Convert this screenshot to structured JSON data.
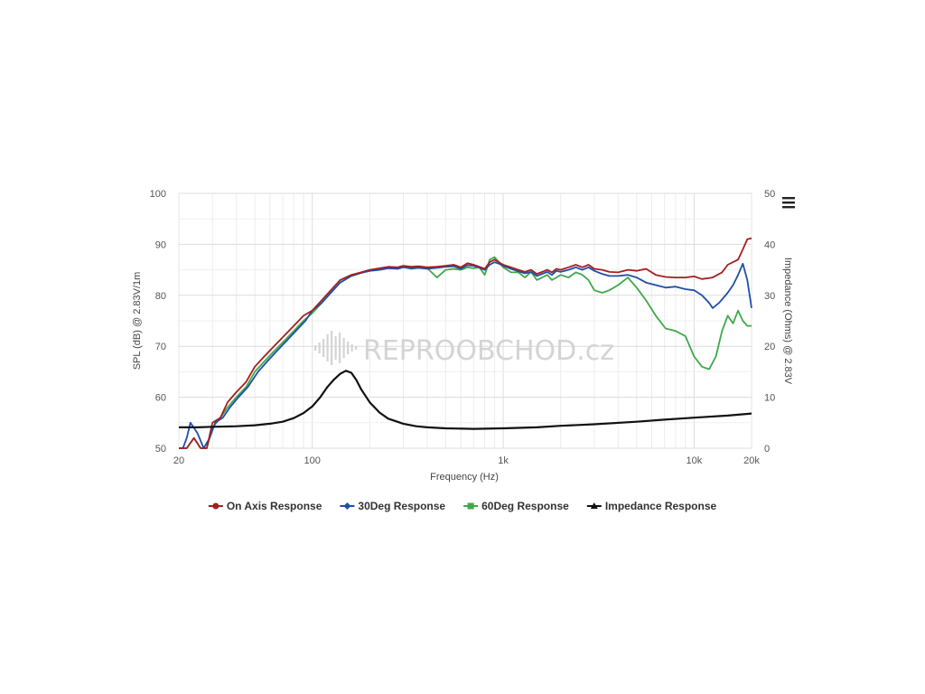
{
  "chart_data": {
    "type": "line",
    "menu_icon": "hamburger-menu-icon",
    "watermark": "REPROOBCHOD.cz",
    "xlabel": "Frequency (Hz)",
    "ylabel_left": "SPL (dB) @ 2.83V/1m",
    "ylabel_right": "Impedance (Ohms) @ 2.83V",
    "x_scale": "log",
    "xlim": [
      20,
      20000
    ],
    "ylim_left": [
      50,
      100
    ],
    "ylim_right": [
      0,
      50
    ],
    "x_ticks": [
      {
        "value": 20,
        "label": "20"
      },
      {
        "value": 100,
        "label": "100"
      },
      {
        "value": 1000,
        "label": "1k"
      },
      {
        "value": 10000,
        "label": "10k"
      },
      {
        "value": 20000,
        "label": "20k"
      }
    ],
    "y_ticks_left": [
      "50",
      "60",
      "70",
      "80",
      "90",
      "100"
    ],
    "y_ticks_right": [
      "0",
      "10",
      "20",
      "30",
      "40",
      "50"
    ],
    "grid": true,
    "legend_position": "bottom",
    "series": [
      {
        "name": "On Axis Response",
        "color": "#a31f1f",
        "axis": "left",
        "marker": "circle",
        "points": [
          [
            20,
            50
          ],
          [
            22,
            47
          ],
          [
            24,
            52
          ],
          [
            26,
            49
          ],
          [
            28,
            50
          ],
          [
            30,
            55
          ],
          [
            33,
            56
          ],
          [
            36,
            59
          ],
          [
            40,
            61
          ],
          [
            45,
            63
          ],
          [
            50,
            66
          ],
          [
            56,
            68
          ],
          [
            63,
            70
          ],
          [
            71,
            72
          ],
          [
            80,
            74
          ],
          [
            90,
            76
          ],
          [
            100,
            77
          ],
          [
            112,
            79
          ],
          [
            125,
            81
          ],
          [
            140,
            83
          ],
          [
            160,
            84
          ],
          [
            180,
            84.5
          ],
          [
            200,
            85
          ],
          [
            225,
            85.3
          ],
          [
            250,
            85.6
          ],
          [
            280,
            85.5
          ],
          [
            300,
            85.8
          ],
          [
            330,
            85.6
          ],
          [
            360,
            85.7
          ],
          [
            400,
            85.5
          ],
          [
            450,
            85.6
          ],
          [
            500,
            85.8
          ],
          [
            550,
            86
          ],
          [
            600,
            85.5
          ],
          [
            650,
            86.3
          ],
          [
            700,
            86
          ],
          [
            750,
            85.6
          ],
          [
            800,
            85.2
          ],
          [
            850,
            86.5
          ],
          [
            900,
            87
          ],
          [
            950,
            86.5
          ],
          [
            1000,
            86
          ],
          [
            1100,
            85.5
          ],
          [
            1200,
            85
          ],
          [
            1300,
            84.6
          ],
          [
            1400,
            85
          ],
          [
            1500,
            84.2
          ],
          [
            1600,
            84.6
          ],
          [
            1700,
            85
          ],
          [
            1800,
            84.5
          ],
          [
            1900,
            85.2
          ],
          [
            2000,
            85
          ],
          [
            2200,
            85.5
          ],
          [
            2400,
            86
          ],
          [
            2600,
            85.5
          ],
          [
            2800,
            86
          ],
          [
            3000,
            85.2
          ],
          [
            3300,
            85
          ],
          [
            3600,
            84.6
          ],
          [
            4000,
            84.5
          ],
          [
            4500,
            85
          ],
          [
            5000,
            84.8
          ],
          [
            5600,
            85.2
          ],
          [
            6300,
            84
          ],
          [
            7100,
            83.6
          ],
          [
            8000,
            83.5
          ],
          [
            9000,
            83.5
          ],
          [
            10000,
            83.7
          ],
          [
            11000,
            83.2
          ],
          [
            12500,
            83.5
          ],
          [
            14000,
            84.5
          ],
          [
            15000,
            86
          ],
          [
            16000,
            86.5
          ],
          [
            17000,
            87
          ],
          [
            18000,
            89
          ],
          [
            19000,
            91
          ],
          [
            20000,
            91.2
          ]
        ]
      },
      {
        "name": "30Deg Response",
        "color": "#1f4fa8",
        "axis": "left",
        "marker": "diamond",
        "points": [
          [
            20,
            50
          ],
          [
            21,
            48
          ],
          [
            22,
            52
          ],
          [
            23,
            55
          ],
          [
            25,
            53
          ],
          [
            27,
            50
          ],
          [
            29,
            52
          ],
          [
            31,
            55
          ],
          [
            34,
            56
          ],
          [
            37,
            58
          ],
          [
            41,
            60
          ],
          [
            46,
            62
          ],
          [
            52,
            65
          ],
          [
            58,
            67
          ],
          [
            65,
            69
          ],
          [
            73,
            71
          ],
          [
            82,
            73
          ],
          [
            92,
            75
          ],
          [
            100,
            77
          ],
          [
            112,
            78.5
          ],
          [
            125,
            80.5
          ],
          [
            140,
            82.5
          ],
          [
            160,
            83.8
          ],
          [
            180,
            84.4
          ],
          [
            200,
            84.8
          ],
          [
            225,
            85
          ],
          [
            250,
            85.3
          ],
          [
            280,
            85.2
          ],
          [
            300,
            85.5
          ],
          [
            330,
            85.3
          ],
          [
            360,
            85.4
          ],
          [
            400,
            85.2
          ],
          [
            450,
            85.4
          ],
          [
            500,
            85.6
          ],
          [
            550,
            85.7
          ],
          [
            600,
            85.2
          ],
          [
            650,
            85.9
          ],
          [
            700,
            85.8
          ],
          [
            750,
            85.4
          ],
          [
            800,
            85
          ],
          [
            850,
            86
          ],
          [
            900,
            86.5
          ],
          [
            950,
            86.2
          ],
          [
            1000,
            85.8
          ],
          [
            1100,
            85.2
          ],
          [
            1200,
            84.7
          ],
          [
            1300,
            84.3
          ],
          [
            1400,
            84.6
          ],
          [
            1500,
            83.8
          ],
          [
            1600,
            84.2
          ],
          [
            1700,
            84.6
          ],
          [
            1800,
            84
          ],
          [
            1900,
            84.8
          ],
          [
            2000,
            84.6
          ],
          [
            2200,
            85
          ],
          [
            2400,
            85.5
          ],
          [
            2600,
            85
          ],
          [
            2800,
            85.5
          ],
          [
            3000,
            84.8
          ],
          [
            3300,
            84.2
          ],
          [
            3600,
            83.8
          ],
          [
            4000,
            83.8
          ],
          [
            4500,
            84
          ],
          [
            5000,
            83.5
          ],
          [
            5600,
            82.5
          ],
          [
            6300,
            82
          ],
          [
            7100,
            81.5
          ],
          [
            8000,
            81.7
          ],
          [
            9000,
            81.2
          ],
          [
            10000,
            81
          ],
          [
            11000,
            80
          ],
          [
            12000,
            78.5
          ],
          [
            12500,
            77.5
          ],
          [
            13500,
            78.5
          ],
          [
            15000,
            80.5
          ],
          [
            16000,
            82
          ],
          [
            17000,
            84
          ],
          [
            18000,
            86.2
          ],
          [
            19000,
            83
          ],
          [
            20000,
            77.5
          ]
        ]
      },
      {
        "name": "60Deg Response",
        "color": "#3fa84a",
        "axis": "left",
        "marker": "square",
        "points": [
          [
            20,
            50
          ],
          [
            22,
            47
          ],
          [
            24,
            52
          ],
          [
            26,
            49
          ],
          [
            28,
            48
          ],
          [
            30,
            54
          ],
          [
            33,
            56
          ],
          [
            36,
            58
          ],
          [
            40,
            60
          ],
          [
            45,
            62
          ],
          [
            50,
            65
          ],
          [
            56,
            67
          ],
          [
            63,
            69
          ],
          [
            71,
            71
          ],
          [
            80,
            73
          ],
          [
            90,
            75
          ],
          [
            100,
            76.5
          ],
          [
            112,
            78.5
          ],
          [
            125,
            80.5
          ],
          [
            140,
            82.5
          ],
          [
            160,
            83.8
          ],
          [
            180,
            84.4
          ],
          [
            200,
            84.8
          ],
          [
            225,
            85
          ],
          [
            250,
            85.4
          ],
          [
            280,
            85.3
          ],
          [
            300,
            85.6
          ],
          [
            330,
            85.2
          ],
          [
            360,
            85.4
          ],
          [
            400,
            85.3
          ],
          [
            450,
            83.5
          ],
          [
            500,
            85
          ],
          [
            550,
            85.2
          ],
          [
            600,
            85
          ],
          [
            650,
            85.5
          ],
          [
            700,
            85.3
          ],
          [
            750,
            85.5
          ],
          [
            800,
            84
          ],
          [
            850,
            87
          ],
          [
            900,
            87.5
          ],
          [
            950,
            86.5
          ],
          [
            1000,
            85.5
          ],
          [
            1100,
            84.5
          ],
          [
            1200,
            84.5
          ],
          [
            1300,
            83.5
          ],
          [
            1400,
            84.6
          ],
          [
            1500,
            83
          ],
          [
            1600,
            83.5
          ],
          [
            1700,
            84
          ],
          [
            1800,
            83
          ],
          [
            1900,
            83.5
          ],
          [
            2000,
            84
          ],
          [
            2200,
            83.5
          ],
          [
            2400,
            84.5
          ],
          [
            2600,
            84
          ],
          [
            2800,
            83
          ],
          [
            3000,
            81
          ],
          [
            3300,
            80.5
          ],
          [
            3600,
            81
          ],
          [
            4000,
            82
          ],
          [
            4500,
            83.5
          ],
          [
            5000,
            81.5
          ],
          [
            5600,
            79
          ],
          [
            6300,
            76
          ],
          [
            7100,
            73.5
          ],
          [
            8000,
            73
          ],
          [
            9000,
            72
          ],
          [
            10000,
            68
          ],
          [
            11000,
            66
          ],
          [
            12000,
            65.5
          ],
          [
            13000,
            68
          ],
          [
            14000,
            73
          ],
          [
            15000,
            76
          ],
          [
            16000,
            74.5
          ],
          [
            17000,
            77
          ],
          [
            18000,
            75
          ],
          [
            19000,
            74
          ],
          [
            20000,
            74
          ]
        ]
      },
      {
        "name": "Impedance Response",
        "color": "#111111",
        "axis": "right",
        "marker": "triangle",
        "points": [
          [
            20,
            4.1
          ],
          [
            25,
            4.1
          ],
          [
            30,
            4.2
          ],
          [
            40,
            4.3
          ],
          [
            50,
            4.5
          ],
          [
            60,
            4.8
          ],
          [
            70,
            5.2
          ],
          [
            80,
            5.9
          ],
          [
            90,
            6.9
          ],
          [
            100,
            8.2
          ],
          [
            110,
            10
          ],
          [
            120,
            12
          ],
          [
            130,
            13.5
          ],
          [
            140,
            14.6
          ],
          [
            150,
            15.2
          ],
          [
            160,
            14.8
          ],
          [
            170,
            13.4
          ],
          [
            180,
            11.6
          ],
          [
            200,
            9
          ],
          [
            225,
            7
          ],
          [
            250,
            5.8
          ],
          [
            300,
            4.8
          ],
          [
            350,
            4.3
          ],
          [
            400,
            4.1
          ],
          [
            500,
            3.9
          ],
          [
            700,
            3.8
          ],
          [
            1000,
            3.9
          ],
          [
            1500,
            4.1
          ],
          [
            2000,
            4.4
          ],
          [
            3000,
            4.7
          ],
          [
            5000,
            5.2
          ],
          [
            7000,
            5.6
          ],
          [
            10000,
            6
          ],
          [
            15000,
            6.4
          ],
          [
            20000,
            6.8
          ]
        ]
      }
    ]
  }
}
